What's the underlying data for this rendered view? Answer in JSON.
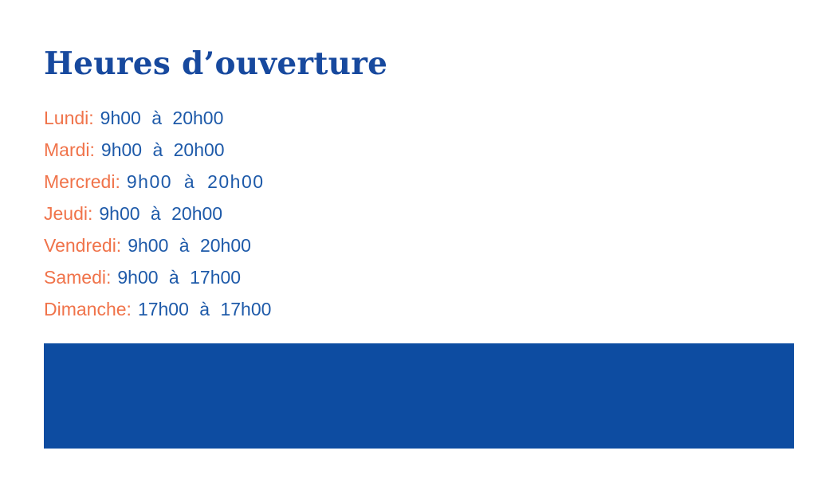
{
  "page": {
    "title": "Heures d’ouverture"
  },
  "colors": {
    "background": "#ffffff",
    "title_blue": "#17499e",
    "hours_blue": "#1e5aa9",
    "day_orange": "#f0734a",
    "banner_blue": "#0d4ca1"
  },
  "hours": {
    "rows": [
      {
        "day": "Lundi:",
        "time": "9h00 à 20h00"
      },
      {
        "day": "Mardi:",
        "time": "9h00 à 20h00"
      },
      {
        "day": "Mercredi:",
        "time": "9h00 à 20h00"
      },
      {
        "day": "Jeudi:",
        "time": "9h00 à 20h00"
      },
      {
        "day": "Vendredi:",
        "time": "9h00 à 20h00"
      },
      {
        "day": "Samedi:",
        "time": "9h00 à 17h00"
      },
      {
        "day": "Dimanche:",
        "time": "17h00 à 17h00"
      }
    ]
  }
}
